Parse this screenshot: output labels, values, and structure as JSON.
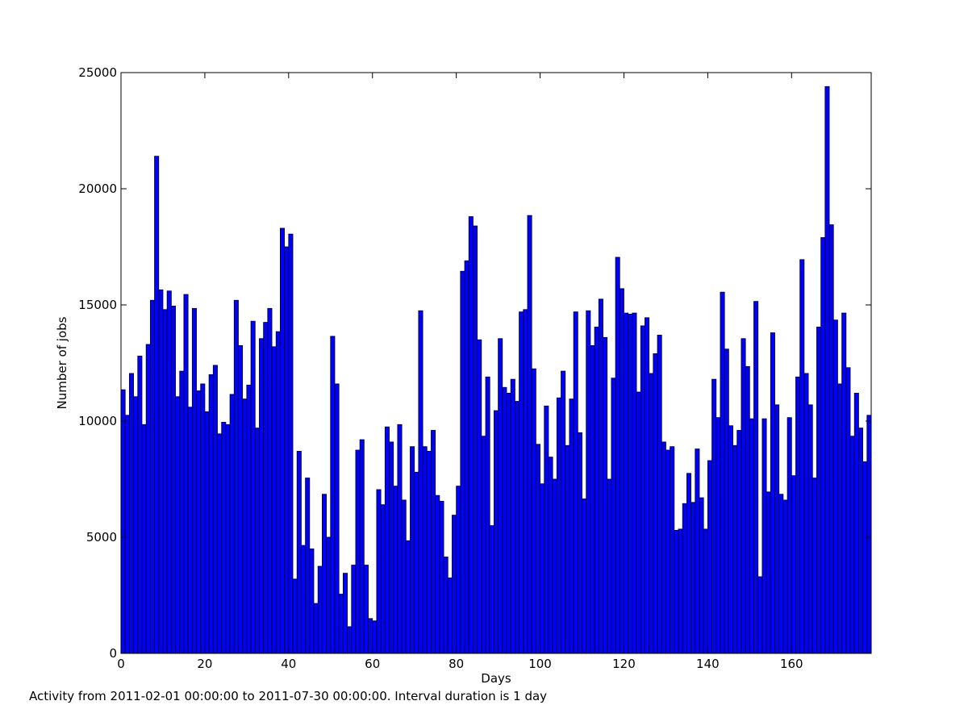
{
  "chart_data": {
    "type": "bar",
    "xlabel": "Days",
    "ylabel": "Number of jobs",
    "xlim": [
      0,
      179
    ],
    "ylim": [
      0,
      25000
    ],
    "x_ticks": [
      0,
      20,
      40,
      60,
      80,
      100,
      120,
      140,
      160
    ],
    "y_ticks": [
      0,
      5000,
      10000,
      15000,
      20000,
      25000
    ],
    "bar_color": "#0000ff",
    "edge_color": "#000000",
    "grid": false,
    "x": [
      0,
      1,
      2,
      3,
      4,
      5,
      6,
      7,
      8,
      9,
      10,
      11,
      12,
      13,
      14,
      15,
      16,
      17,
      18,
      19,
      20,
      21,
      22,
      23,
      24,
      25,
      26,
      27,
      28,
      29,
      30,
      31,
      32,
      33,
      34,
      35,
      36,
      37,
      38,
      39,
      40,
      41,
      42,
      43,
      44,
      45,
      46,
      47,
      48,
      49,
      50,
      51,
      52,
      53,
      54,
      55,
      56,
      57,
      58,
      59,
      60,
      61,
      62,
      63,
      64,
      65,
      66,
      67,
      68,
      69,
      70,
      71,
      72,
      73,
      74,
      75,
      76,
      77,
      78,
      79,
      80,
      81,
      82,
      83,
      84,
      85,
      86,
      87,
      88,
      89,
      90,
      91,
      92,
      93,
      94,
      95,
      96,
      97,
      98,
      99,
      100,
      101,
      102,
      103,
      104,
      105,
      106,
      107,
      108,
      109,
      110,
      111,
      112,
      113,
      114,
      115,
      116,
      117,
      118,
      119,
      120,
      121,
      122,
      123,
      124,
      125,
      126,
      127,
      128,
      129,
      130,
      131,
      132,
      133,
      134,
      135,
      136,
      137,
      138,
      139,
      140,
      141,
      142,
      143,
      144,
      145,
      146,
      147,
      148,
      149,
      150,
      151,
      152,
      153,
      154,
      155,
      156,
      157,
      158,
      159,
      160,
      161,
      162,
      163,
      164,
      165,
      166,
      167,
      168,
      169,
      170,
      171,
      172,
      173,
      174,
      175,
      176,
      177,
      178
    ],
    "values": [
      11350,
      10250,
      12050,
      11050,
      12800,
      9850,
      13300,
      15200,
      21400,
      15650,
      14800,
      15600,
      14950,
      11050,
      12150,
      15450,
      10600,
      14850,
      11300,
      11600,
      10400,
      12000,
      12400,
      9450,
      9950,
      9850,
      11150,
      15200,
      13250,
      10950,
      11550,
      14300,
      9700,
      13550,
      14250,
      14850,
      13200,
      13850,
      18300,
      17500,
      18050,
      3200,
      8700,
      4650,
      7550,
      4500,
      2150,
      3750,
      6850,
      5000,
      13650,
      11600,
      2550,
      3450,
      1150,
      3800,
      8750,
      9200,
      3800,
      1500,
      1400,
      7050,
      6400,
      9750,
      9100,
      7200,
      9850,
      6600,
      4850,
      8900,
      7800,
      14750,
      8900,
      8700,
      9600,
      6800,
      6550,
      4150,
      3250,
      5950,
      7200,
      16450,
      16900,
      18800,
      18400,
      13500,
      9350,
      11900,
      5500,
      10450,
      13550,
      11450,
      11200,
      11800,
      10850,
      14700,
      14800,
      18850,
      12250,
      9000,
      7300,
      10650,
      8450,
      7500,
      11000,
      12150,
      8950,
      10950,
      14700,
      9500,
      6650,
      14750,
      13250,
      14050,
      15250,
      13600,
      7500,
      11850,
      17050,
      15700,
      14650,
      14600,
      14650,
      11250,
      14100,
      14450,
      12050,
      12900,
      13700,
      9100,
      8750,
      8900,
      5300,
      5350,
      6450,
      7750,
      6500,
      8800,
      6700,
      5350,
      8300,
      11800,
      10150,
      15550,
      13100,
      9800,
      8950,
      9600,
      13550,
      12350,
      10100,
      15150,
      3300,
      10100,
      6950,
      13800,
      10700,
      6850,
      6600,
      10150,
      7650,
      11900,
      16950,
      12050,
      10700,
      7550,
      14050,
      17900,
      24400,
      18450,
      14350,
      11600,
      14650,
      12300,
      9350,
      11200,
      9700,
      8250,
      10250
    ]
  },
  "footer_note": "Activity from 2011-02-01 00:00:00 to 2011-07-30 00:00:00. Interval duration is 1 day"
}
